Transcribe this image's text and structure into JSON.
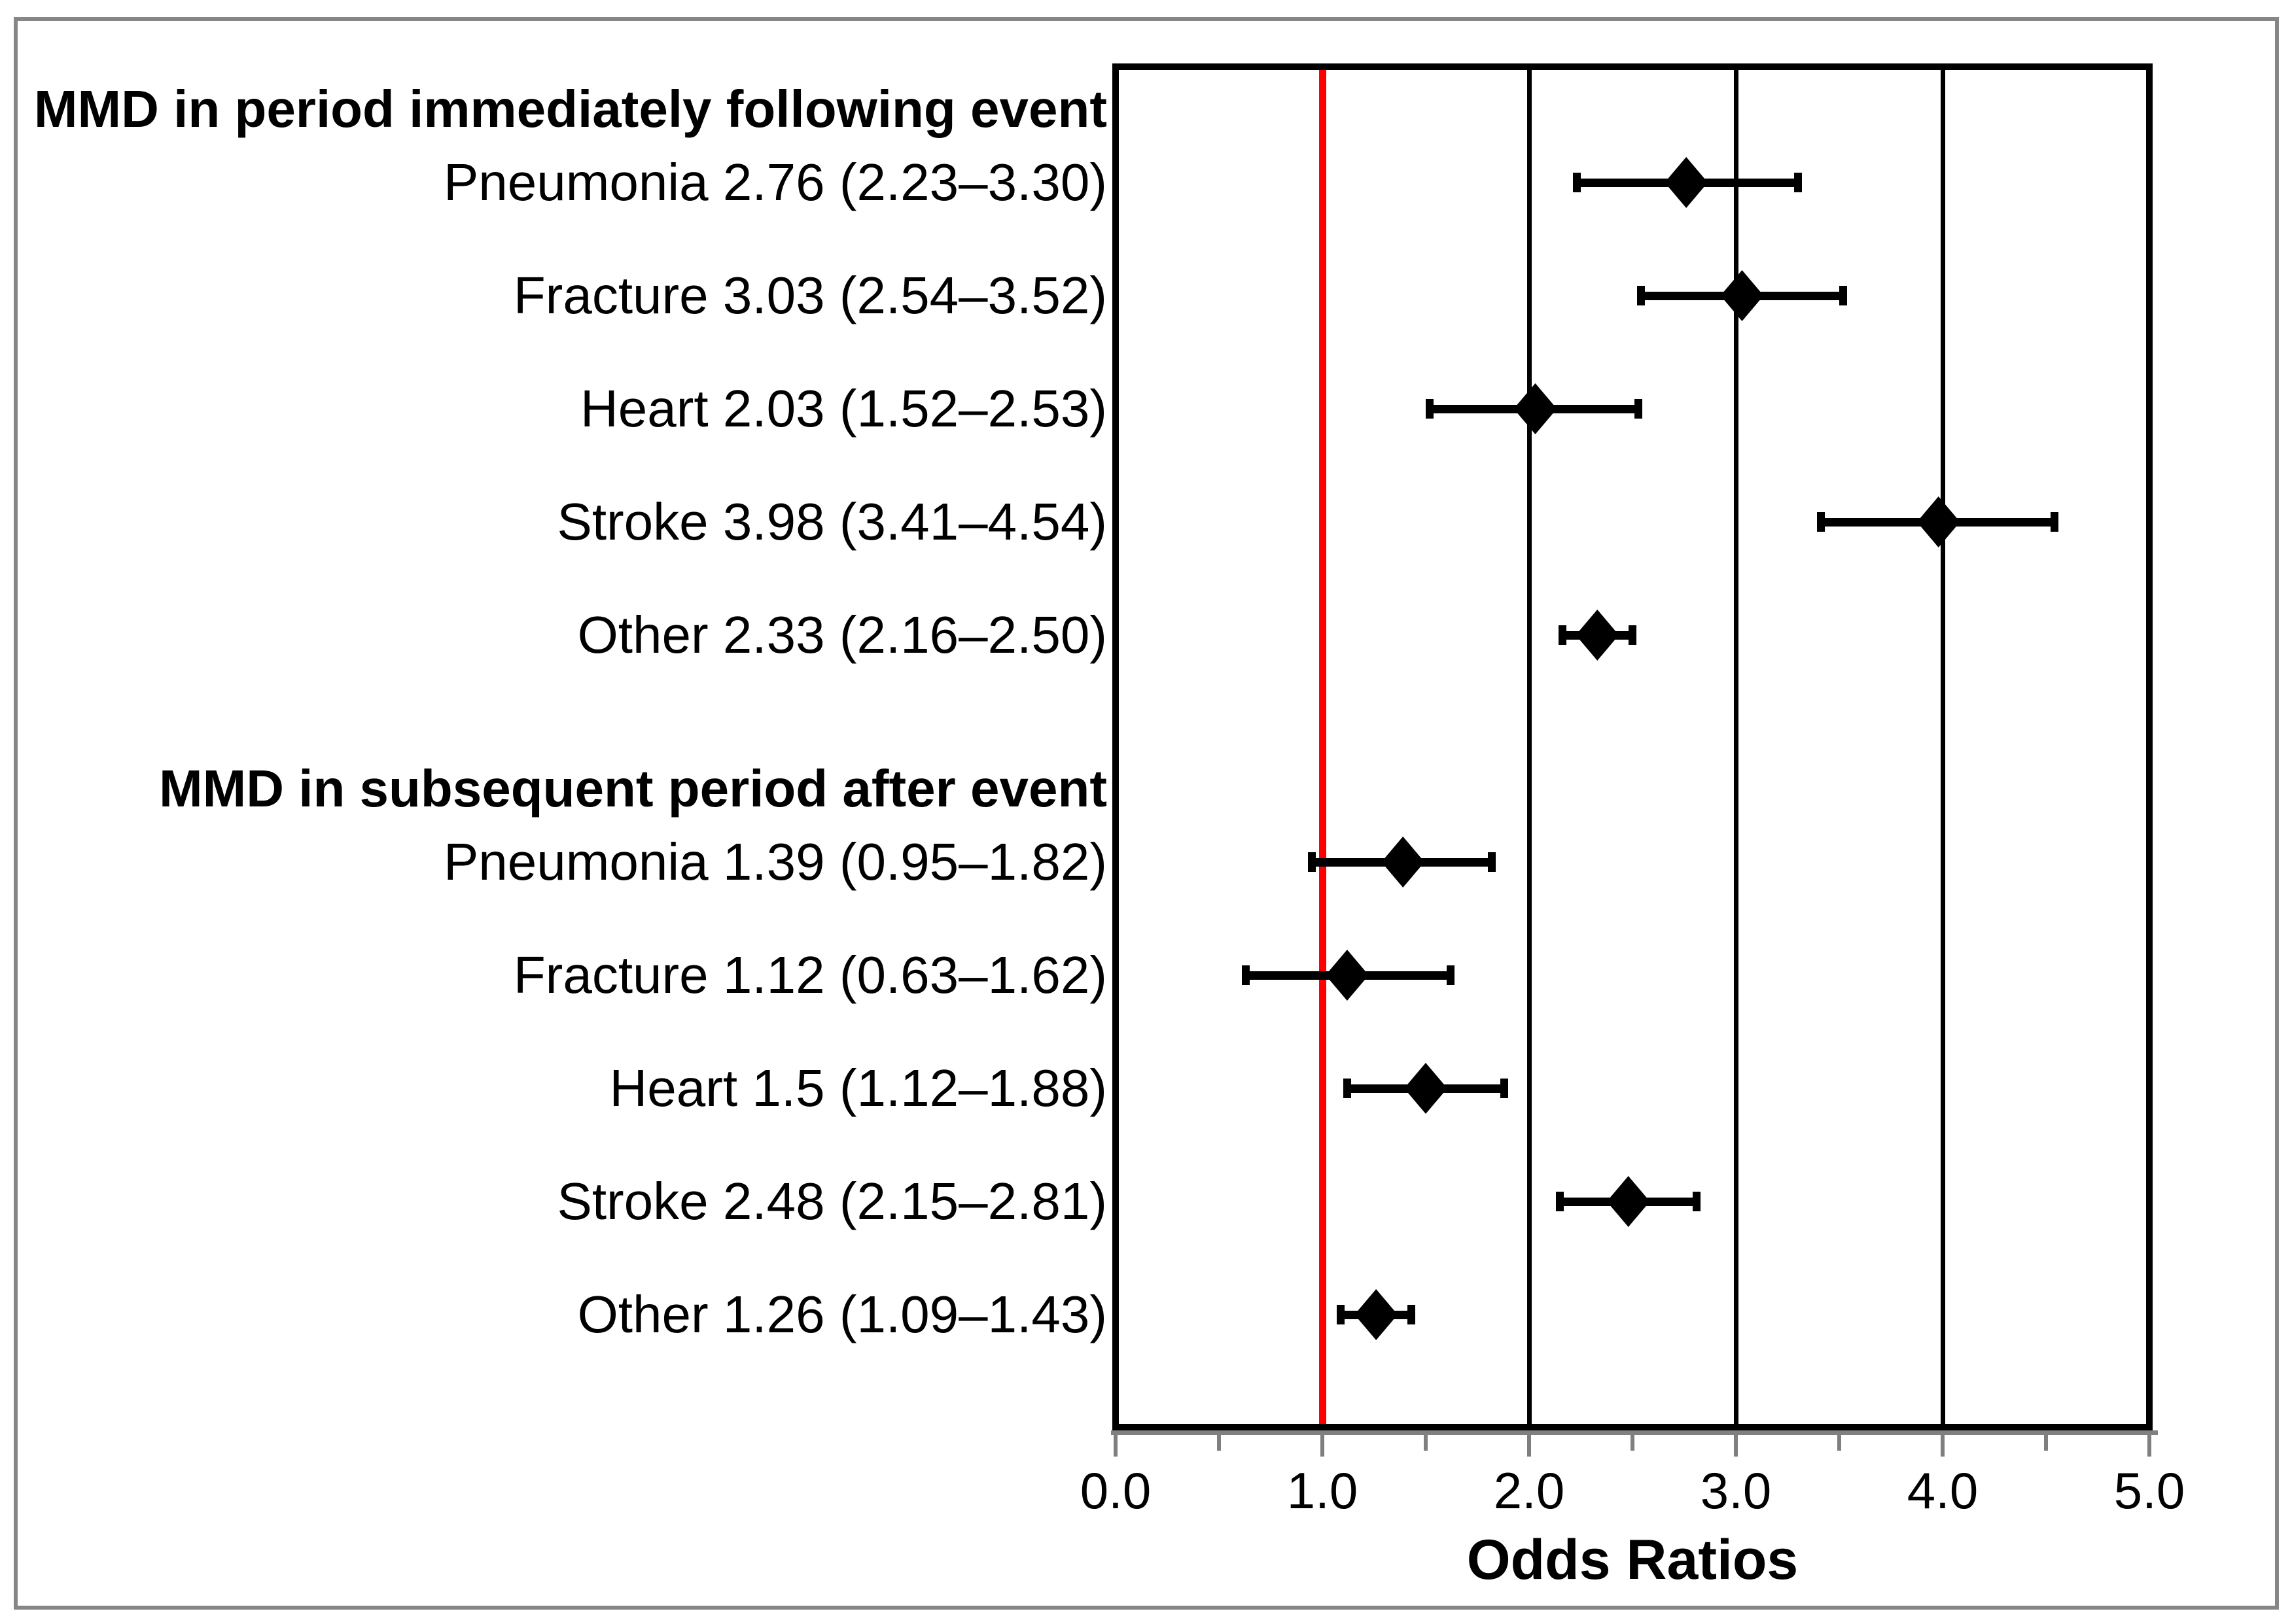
{
  "chart_data": {
    "type": "scatter",
    "subtype": "forest-plot",
    "title": "",
    "xlabel": "Odds Ratios",
    "ylabel": "",
    "xlim": [
      0.0,
      5.0
    ],
    "x_major_ticks": [
      0.0,
      1.0,
      2.0,
      3.0,
      4.0,
      5.0
    ],
    "x_tick_labels": [
      "0.0",
      "1.0",
      "2.0",
      "3.0",
      "4.0",
      "5.0"
    ],
    "x_minor_ticks": [
      0.5,
      1.5,
      2.5,
      3.5,
      4.5
    ],
    "grid": "vertical-only",
    "gridline_values": [
      2.0,
      3.0,
      4.0
    ],
    "reference_line": {
      "x": 1.0,
      "color": "#ff0000"
    },
    "marker": "diamond",
    "colors": {
      "marker": "#000000",
      "error_bar": "#000000",
      "reference_line": "#ff0000",
      "gridline": "#000000",
      "tick": "#7f7f7f",
      "frame": "#868686",
      "axis_shadow": "#808080",
      "text": "#000000",
      "background": "#ffffff"
    },
    "groups": [
      {
        "header": "MMD in period immediately following event",
        "items": [
          {
            "label": "Pneumonia 2.76 (2.23–3.30)",
            "name": "Pneumonia",
            "or": 2.76,
            "ci_low": 2.23,
            "ci_high": 3.3
          },
          {
            "label": "Fracture 3.03 (2.54–3.52)",
            "name": "Fracture",
            "or": 3.03,
            "ci_low": 2.54,
            "ci_high": 3.52
          },
          {
            "label": "Heart 2.03 (1.52–2.53)",
            "name": "Heart",
            "or": 2.03,
            "ci_low": 1.52,
            "ci_high": 2.53
          },
          {
            "label": "Stroke 3.98 (3.41–4.54)",
            "name": "Stroke",
            "or": 3.98,
            "ci_low": 3.41,
            "ci_high": 4.54
          },
          {
            "label": "Other 2.33 (2.16–2.50)",
            "name": "Other",
            "or": 2.33,
            "ci_low": 2.16,
            "ci_high": 2.5
          }
        ]
      },
      {
        "header": "MMD in subsequent period after event",
        "items": [
          {
            "label": "Pneumonia 1.39 (0.95–1.82)",
            "name": "Pneumonia",
            "or": 1.39,
            "ci_low": 0.95,
            "ci_high": 1.82
          },
          {
            "label": "Fracture 1.12 (0.63–1.62)",
            "name": "Fracture",
            "or": 1.12,
            "ci_low": 0.63,
            "ci_high": 1.62
          },
          {
            "label": "Heart 1.5 (1.12–1.88)",
            "name": "Heart",
            "or": 1.5,
            "ci_low": 1.12,
            "ci_high": 1.88
          },
          {
            "label": "Stroke 2.48 (2.15–2.81)",
            "name": "Stroke",
            "or": 2.48,
            "ci_low": 2.15,
            "ci_high": 2.81
          },
          {
            "label": "Other 1.26 (1.09–1.43)",
            "name": "Other",
            "or": 1.26,
            "ci_low": 1.09,
            "ci_high": 1.43
          }
        ]
      }
    ]
  }
}
